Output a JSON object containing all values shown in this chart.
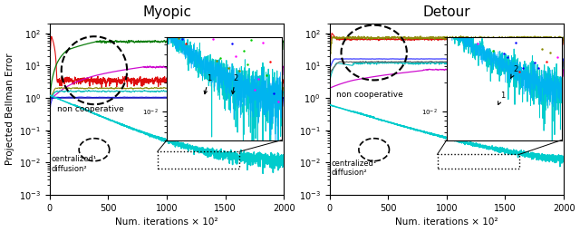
{
  "title_left": "Myopic",
  "title_right": "Detour",
  "xlabel": "Num. iterations × 10²",
  "ylabel": "Projected Bellman Error",
  "xlim": [
    0,
    2000
  ],
  "ylim": [
    0.001,
    200
  ],
  "nc_text": "non cooperative",
  "bot_text": "centralized¹\ndiffusion²",
  "fig_width": 6.4,
  "fig_height": 2.56,
  "dpi": 100
}
